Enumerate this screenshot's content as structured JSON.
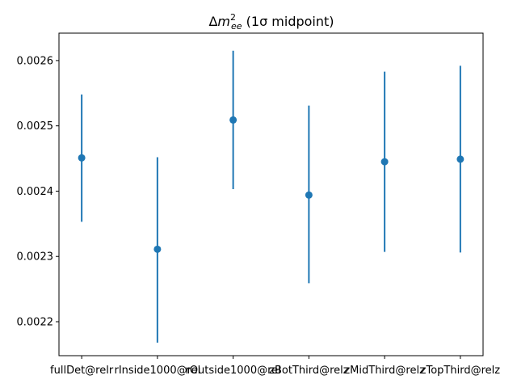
{
  "chart_data": {
    "type": "scatter",
    "title": "Δm²ee (1σ midpoint)",
    "title_parts": {
      "prefix": "Δ",
      "base": "m",
      "sup": "2",
      "sub": "ee",
      "suffix": " (1σ midpoint)"
    },
    "xlabel": "",
    "ylabel": "",
    "categories": [
      "fullDet@relr",
      "rInside1000@rel",
      "rOutside1000@rel",
      "zBotThird@relz",
      "zMidThird@relz",
      "zTopThird@relz"
    ],
    "values": [
      0.002451,
      0.002311,
      0.002509,
      0.002394,
      0.002445,
      0.002449
    ],
    "y_lower": [
      0.002353,
      0.002168,
      0.002403,
      0.002259,
      0.002307,
      0.002306
    ],
    "y_upper": [
      0.002548,
      0.002452,
      0.002615,
      0.002531,
      0.002583,
      0.002592
    ],
    "ylim": [
      0.002148,
      0.002642
    ],
    "yticks": [
      0.0022,
      0.0023,
      0.0024,
      0.0025,
      0.0026
    ],
    "ytick_labels": [
      "0.0022",
      "0.0023",
      "0.0024",
      "0.0025",
      "0.0026"
    ],
    "grid": false,
    "legend": "none",
    "color": "#1f77b4"
  }
}
